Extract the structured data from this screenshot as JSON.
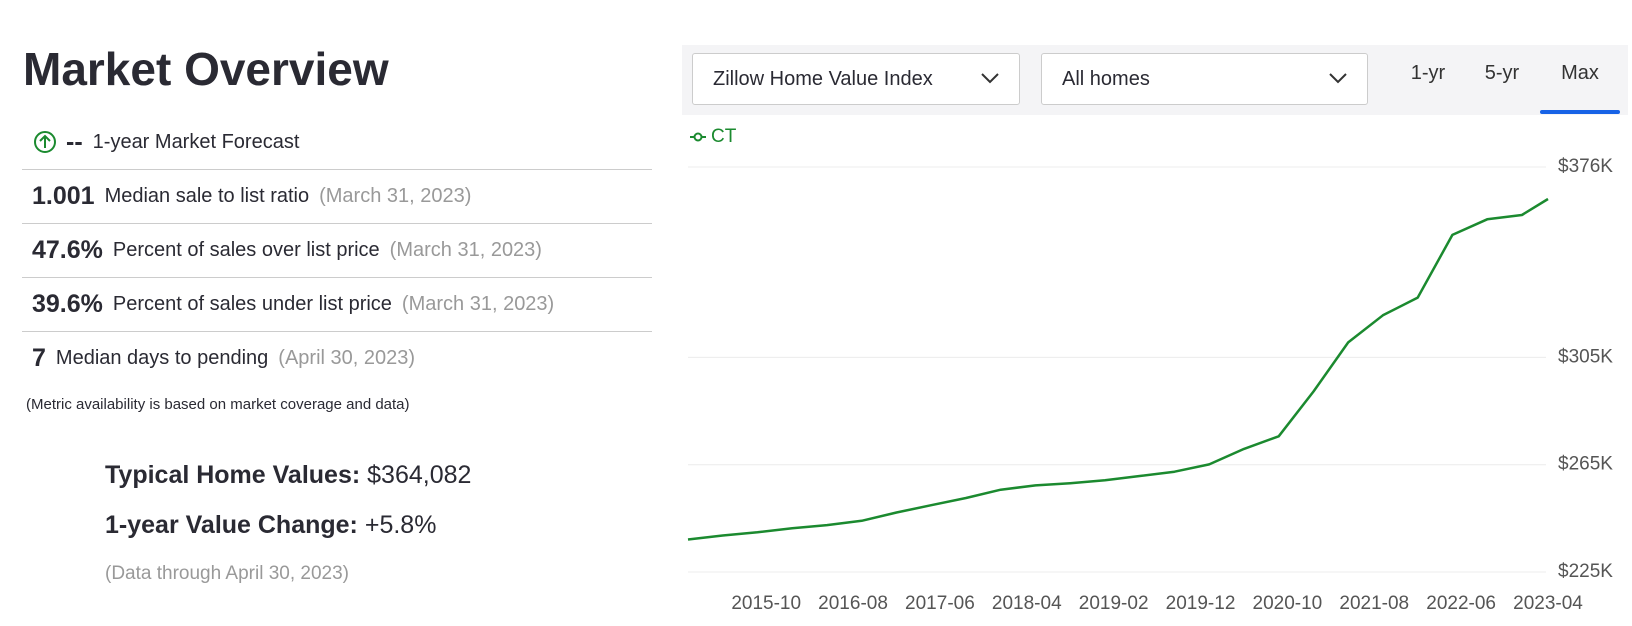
{
  "header": {
    "title": "Market Overview"
  },
  "metrics": [
    {
      "value": "--",
      "label": "1-year Market Forecast"
    },
    {
      "value": "1.001",
      "label": "Median sale to list ratio",
      "date": "(March 31, 2023)"
    },
    {
      "value": "47.6%",
      "label": "Percent of sales over list price",
      "date": "(March 31, 2023)"
    },
    {
      "value": "39.6%",
      "label": "Percent of sales under list price",
      "date": "(March 31, 2023)"
    },
    {
      "value": "7",
      "label": "Median days to pending",
      "date": "(April 30, 2023)"
    }
  ],
  "note": "(Metric availability is based on market coverage and data)",
  "summary": [
    {
      "label": "Typical Home Values:",
      "value": "$364,082"
    },
    {
      "label": "1-year Value Change:",
      "value": "+5.8%"
    }
  ],
  "data_through": "(Data through April 30, 2023)",
  "controls": {
    "index_select": "Zillow Home Value Index",
    "home_select": "All homes",
    "ranges": [
      "1-yr",
      "5-yr",
      "Max"
    ],
    "active_range": 2
  },
  "chart_data": {
    "type": "line",
    "x": [
      "2015-01",
      "2015-05",
      "2015-09",
      "2016-01",
      "2016-05",
      "2016-09",
      "2017-01",
      "2017-05",
      "2017-09",
      "2018-01",
      "2018-05",
      "2018-09",
      "2019-01",
      "2019-05",
      "2019-09",
      "2020-01",
      "2020-05",
      "2020-09",
      "2021-01",
      "2021-05",
      "2021-09",
      "2022-01",
      "2022-05",
      "2022-09",
      "2023-01",
      "2023-04"
    ],
    "series": [
      {
        "name": "CT",
        "color": "#1b8a2f",
        "values": [
          237100,
          238600,
          239800,
          241300,
          242500,
          244100,
          247200,
          249900,
          252600,
          255700,
          257300,
          258100,
          259200,
          260800,
          262400,
          265100,
          270900,
          275600,
          292300,
          310600,
          320700,
          327300,
          350700,
          356500,
          358100,
          364082
        ]
      }
    ],
    "xlim": [
      "2015-01",
      "2023-04"
    ],
    "xticks": [
      "2015-10",
      "2016-08",
      "2017-06",
      "2018-04",
      "2019-02",
      "2019-12",
      "2020-10",
      "2021-08",
      "2022-06",
      "2023-04"
    ],
    "ylim": [
      225000,
      376000
    ],
    "yticks": [
      {
        "value": 225000,
        "label": "$225K"
      },
      {
        "value": 265000,
        "label": "$265K"
      },
      {
        "value": 305000,
        "label": "$305K"
      },
      {
        "value": 376000,
        "label": "$376K"
      }
    ],
    "grid": true
  }
}
